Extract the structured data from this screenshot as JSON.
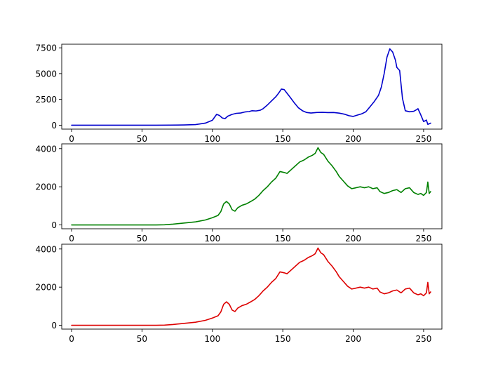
{
  "chart_data": [
    {
      "type": "line",
      "title": "",
      "xlabel": "",
      "ylabel": "",
      "xlim": [
        -7,
        263
      ],
      "ylim": [
        -380,
        7850
      ],
      "xticks": [
        0,
        50,
        100,
        150,
        200,
        250
      ],
      "yticks": [
        0,
        2500,
        5000,
        7500
      ],
      "xtick_labels": [
        "0",
        "50",
        "100",
        "150",
        "200",
        "250"
      ],
      "ytick_labels": [
        "0",
        "2500",
        "5000",
        "7500"
      ],
      "grid": false,
      "series": [
        {
          "color": "#0000cc",
          "points": [
            [
              0,
              0
            ],
            [
              60,
              0
            ],
            [
              70,
              5
            ],
            [
              80,
              25
            ],
            [
              88,
              60
            ],
            [
              95,
              200
            ],
            [
              100,
              480
            ],
            [
              103,
              1050
            ],
            [
              105,
              950
            ],
            [
              107,
              700
            ],
            [
              109,
              640
            ],
            [
              111,
              880
            ],
            [
              114,
              1050
            ],
            [
              117,
              1150
            ],
            [
              120,
              1180
            ],
            [
              123,
              1280
            ],
            [
              126,
              1320
            ],
            [
              128,
              1400
            ],
            [
              131,
              1380
            ],
            [
              134,
              1450
            ],
            [
              136,
              1600
            ],
            [
              139,
              1950
            ],
            [
              142,
              2350
            ],
            [
              145,
              2750
            ],
            [
              147,
              3100
            ],
            [
              149,
              3500
            ],
            [
              151,
              3450
            ],
            [
              153,
              3100
            ],
            [
              155,
              2750
            ],
            [
              158,
              2200
            ],
            [
              161,
              1700
            ],
            [
              164,
              1400
            ],
            [
              167,
              1230
            ],
            [
              170,
              1180
            ],
            [
              174,
              1230
            ],
            [
              178,
              1250
            ],
            [
              182,
              1220
            ],
            [
              186,
              1230
            ],
            [
              190,
              1170
            ],
            [
              194,
              1060
            ],
            [
              197,
              920
            ],
            [
              200,
              850
            ],
            [
              203,
              980
            ],
            [
              206,
              1100
            ],
            [
              209,
              1300
            ],
            [
              212,
              1800
            ],
            [
              215,
              2300
            ],
            [
              218,
              2900
            ],
            [
              220,
              3700
            ],
            [
              222,
              5000
            ],
            [
              224,
              6600
            ],
            [
              226,
              7400
            ],
            [
              228,
              7100
            ],
            [
              230,
              6300
            ],
            [
              231,
              5600
            ],
            [
              233,
              5300
            ],
            [
              235,
              2600
            ],
            [
              237,
              1400
            ],
            [
              240,
              1300
            ],
            [
              243,
              1350
            ],
            [
              245,
              1500
            ],
            [
              246,
              1600
            ],
            [
              248,
              1000
            ],
            [
              250,
              350
            ],
            [
              252,
              500
            ],
            [
              253,
              80
            ],
            [
              255,
              200
            ]
          ]
        },
        {
          "color": "#008000",
          "points": [
            [
              0,
              0
            ],
            [
              60,
              0
            ],
            [
              66,
              10
            ],
            [
              72,
              40
            ],
            [
              80,
              100
            ],
            [
              88,
              160
            ],
            [
              95,
              260
            ],
            [
              100,
              380
            ],
            [
              104,
              500
            ],
            [
              106,
              700
            ],
            [
              108,
              1100
            ],
            [
              110,
              1230
            ],
            [
              112,
              1100
            ],
            [
              114,
              800
            ],
            [
              116,
              720
            ],
            [
              118,
              900
            ],
            [
              121,
              1030
            ],
            [
              124,
              1100
            ],
            [
              127,
              1220
            ],
            [
              130,
              1350
            ],
            [
              133,
              1550
            ],
            [
              136,
              1800
            ],
            [
              139,
              2000
            ],
            [
              142,
              2250
            ],
            [
              145,
              2450
            ],
            [
              148,
              2800
            ],
            [
              151,
              2750
            ],
            [
              153,
              2700
            ],
            [
              156,
              2900
            ],
            [
              159,
              3100
            ],
            [
              162,
              3300
            ],
            [
              165,
              3400
            ],
            [
              168,
              3550
            ],
            [
              171,
              3650
            ],
            [
              173,
              3750
            ],
            [
              175,
              4050
            ],
            [
              177,
              3800
            ],
            [
              179,
              3700
            ],
            [
              182,
              3350
            ],
            [
              185,
              3100
            ],
            [
              188,
              2800
            ],
            [
              190,
              2550
            ],
            [
              193,
              2300
            ],
            [
              196,
              2050
            ],
            [
              199,
              1900
            ],
            [
              202,
              1950
            ],
            [
              205,
              2000
            ],
            [
              208,
              1950
            ],
            [
              211,
              2000
            ],
            [
              214,
              1900
            ],
            [
              217,
              1950
            ],
            [
              219,
              1750
            ],
            [
              222,
              1650
            ],
            [
              225,
              1700
            ],
            [
              228,
              1800
            ],
            [
              231,
              1850
            ],
            [
              234,
              1700
            ],
            [
              237,
              1900
            ],
            [
              240,
              1950
            ],
            [
              243,
              1700
            ],
            [
              246,
              1600
            ],
            [
              248,
              1650
            ],
            [
              250,
              1550
            ],
            [
              252,
              1700
            ],
            [
              253,
              2250
            ],
            [
              254,
              1650
            ],
            [
              255,
              1750
            ]
          ]
        },
        {
          "color": "#dd0000",
          "points": [
            [
              0,
              0
            ],
            [
              60,
              0
            ],
            [
              66,
              10
            ],
            [
              72,
              40
            ],
            [
              80,
              100
            ],
            [
              88,
              160
            ],
            [
              95,
              260
            ],
            [
              100,
              380
            ],
            [
              104,
              500
            ],
            [
              106,
              700
            ],
            [
              108,
              1100
            ],
            [
              110,
              1230
            ],
            [
              112,
              1100
            ],
            [
              114,
              800
            ],
            [
              116,
              720
            ],
            [
              118,
              900
            ],
            [
              121,
              1030
            ],
            [
              124,
              1100
            ],
            [
              127,
              1220
            ],
            [
              130,
              1350
            ],
            [
              133,
              1550
            ],
            [
              136,
              1800
            ],
            [
              139,
              2000
            ],
            [
              142,
              2250
            ],
            [
              145,
              2450
            ],
            [
              148,
              2800
            ],
            [
              151,
              2750
            ],
            [
              153,
              2700
            ],
            [
              156,
              2900
            ],
            [
              159,
              3100
            ],
            [
              162,
              3300
            ],
            [
              165,
              3400
            ],
            [
              168,
              3550
            ],
            [
              171,
              3650
            ],
            [
              173,
              3750
            ],
            [
              175,
              4050
            ],
            [
              177,
              3800
            ],
            [
              179,
              3700
            ],
            [
              182,
              3350
            ],
            [
              185,
              3100
            ],
            [
              188,
              2800
            ],
            [
              190,
              2550
            ],
            [
              193,
              2300
            ],
            [
              196,
              2050
            ],
            [
              199,
              1900
            ],
            [
              202,
              1950
            ],
            [
              205,
              2000
            ],
            [
              208,
              1950
            ],
            [
              211,
              2000
            ],
            [
              214,
              1900
            ],
            [
              217,
              1950
            ],
            [
              219,
              1750
            ],
            [
              222,
              1650
            ],
            [
              225,
              1700
            ],
            [
              228,
              1800
            ],
            [
              231,
              1850
            ],
            [
              234,
              1700
            ],
            [
              237,
              1900
            ],
            [
              240,
              1950
            ],
            [
              243,
              1700
            ],
            [
              246,
              1600
            ],
            [
              248,
              1650
            ],
            [
              250,
              1550
            ],
            [
              252,
              1700
            ],
            [
              253,
              2250
            ],
            [
              254,
              1650
            ],
            [
              255,
              1750
            ]
          ]
        }
      ]
    },
    {
      "type": "line",
      "title": "",
      "xlabel": "",
      "ylabel": "",
      "xlim": [
        -7,
        263
      ],
      "ylim": [
        -200,
        4250
      ],
      "xticks": [
        0,
        50,
        100,
        150,
        200,
        250
      ],
      "yticks": [
        0,
        2000,
        4000
      ],
      "xtick_labels": [
        "0",
        "50",
        "100",
        "150",
        "200",
        "250"
      ],
      "ytick_labels": [
        "0",
        "2000",
        "4000"
      ],
      "grid": false,
      "series_ref": "green"
    },
    {
      "type": "line",
      "title": "",
      "xlabel": "",
      "ylabel": "",
      "xlim": [
        -7,
        263
      ],
      "ylim": [
        -200,
        4250
      ],
      "xticks": [
        0,
        50,
        100,
        150,
        200,
        250
      ],
      "yticks": [
        0,
        2000,
        4000
      ],
      "xtick_labels": [
        "0",
        "50",
        "100",
        "150",
        "200",
        "250"
      ],
      "ytick_labels": [
        "0",
        "2000",
        "4000"
      ],
      "grid": false,
      "series_ref": "red"
    }
  ]
}
